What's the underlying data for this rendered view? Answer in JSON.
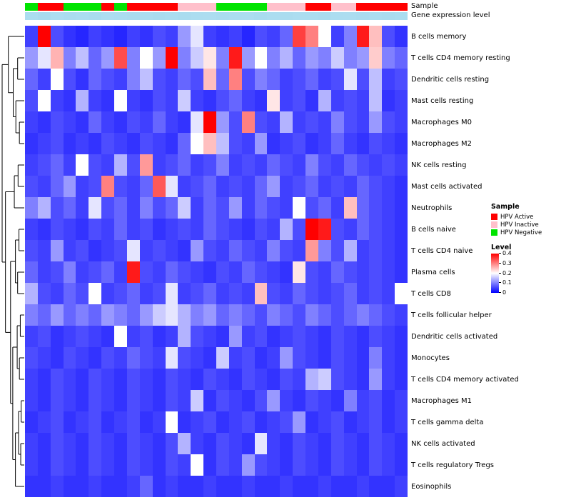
{
  "annotations": {
    "sample_label": "Sample",
    "expression_label": "Gene expression level"
  },
  "legend": {
    "sample_title": "Sample",
    "sample_items": [
      {
        "label": "HPV Active",
        "color": "#ff0000"
      },
      {
        "label": "HPV Inactive",
        "color": "#ffc0cb"
      },
      {
        "label": "HPV Negative",
        "color": "#00e400"
      }
    ],
    "level_title": "Level",
    "level_ticks": [
      "0.4",
      "0.3",
      "0.2",
      "0.1",
      "0"
    ]
  },
  "chart_data": {
    "type": "heatmap",
    "title": "",
    "rows": [
      "B cells memory",
      "T cells CD4 memory resting",
      "Dendritic cells resting",
      "Mast cells resting",
      "Macrophages M0",
      "Macrophages M2",
      "NK cells resting",
      "Mast cells activated",
      "Neutrophils",
      "B cells naive",
      "T cells CD4 naive",
      "Plasma cells",
      "T cells CD8",
      "T cells follicular helper",
      "Dendritic cells activated",
      "Monocytes",
      "T cells CD4 memory activated",
      "Macrophages M1",
      "T cells gamma delta",
      "NK cells activated",
      "T cells regulatory  Tregs",
      "Eosinophils"
    ],
    "n_columns": 30,
    "vmin": 0,
    "vmax": 0.4,
    "colormap": {
      "low": "#0000ff",
      "mid": "#ffffff",
      "high": "#ff0000"
    },
    "values": [
      [
        0.05,
        0.4,
        0.06,
        0.04,
        0.03,
        0.05,
        0.04,
        0.03,
        0.05,
        0.04,
        0.06,
        0.05,
        0.12,
        0.18,
        0.05,
        0.04,
        0.05,
        0.03,
        0.06,
        0.05,
        0.08,
        0.35,
        0.3,
        0.2,
        0.05,
        0.1,
        0.38,
        0.25,
        0.06,
        0.04
      ],
      [
        0.12,
        0.18,
        0.26,
        0.1,
        0.15,
        0.08,
        0.12,
        0.34,
        0.1,
        0.2,
        0.12,
        0.4,
        0.1,
        0.16,
        0.22,
        0.1,
        0.38,
        0.12,
        0.2,
        0.1,
        0.14,
        0.08,
        0.12,
        0.1,
        0.16,
        0.1,
        0.12,
        0.24,
        0.1,
        0.08
      ],
      [
        0.08,
        0.05,
        0.2,
        0.06,
        0.04,
        0.08,
        0.06,
        0.05,
        0.1,
        0.15,
        0.06,
        0.05,
        0.08,
        0.06,
        0.25,
        0.08,
        0.3,
        0.06,
        0.1,
        0.08,
        0.05,
        0.06,
        0.08,
        0.05,
        0.06,
        0.18,
        0.06,
        0.15,
        0.05,
        0.06
      ],
      [
        0.06,
        0.2,
        0.05,
        0.04,
        0.14,
        0.05,
        0.04,
        0.2,
        0.05,
        0.04,
        0.06,
        0.05,
        0.16,
        0.05,
        0.04,
        0.06,
        0.08,
        0.05,
        0.04,
        0.22,
        0.05,
        0.06,
        0.04,
        0.14,
        0.05,
        0.06,
        0.05,
        0.15,
        0.04,
        0.05
      ],
      [
        0.05,
        0.04,
        0.06,
        0.05,
        0.04,
        0.08,
        0.05,
        0.04,
        0.06,
        0.05,
        0.08,
        0.05,
        0.04,
        0.18,
        0.4,
        0.12,
        0.06,
        0.3,
        0.06,
        0.05,
        0.14,
        0.05,
        0.06,
        0.05,
        0.1,
        0.06,
        0.05,
        0.12,
        0.06,
        0.05
      ],
      [
        0.04,
        0.05,
        0.06,
        0.04,
        0.05,
        0.04,
        0.06,
        0.05,
        0.04,
        0.06,
        0.05,
        0.04,
        0.08,
        0.2,
        0.25,
        0.15,
        0.06,
        0.05,
        0.12,
        0.04,
        0.05,
        0.06,
        0.04,
        0.05,
        0.08,
        0.05,
        0.04,
        0.06,
        0.05,
        0.04
      ],
      [
        0.05,
        0.06,
        0.08,
        0.05,
        0.2,
        0.06,
        0.05,
        0.14,
        0.06,
        0.28,
        0.05,
        0.06,
        0.08,
        0.05,
        0.06,
        0.1,
        0.05,
        0.06,
        0.05,
        0.08,
        0.06,
        0.05,
        0.1,
        0.06,
        0.05,
        0.08,
        0.06,
        0.05,
        0.06,
        0.05
      ],
      [
        0.06,
        0.05,
        0.08,
        0.12,
        0.05,
        0.06,
        0.3,
        0.06,
        0.05,
        0.08,
        0.33,
        0.18,
        0.05,
        0.06,
        0.08,
        0.05,
        0.06,
        0.05,
        0.08,
        0.12,
        0.05,
        0.06,
        0.08,
        0.05,
        0.06,
        0.05,
        0.08,
        0.06,
        0.05,
        0.04
      ],
      [
        0.1,
        0.14,
        0.06,
        0.08,
        0.05,
        0.18,
        0.06,
        0.08,
        0.05,
        0.1,
        0.06,
        0.08,
        0.16,
        0.05,
        0.08,
        0.06,
        0.12,
        0.05,
        0.08,
        0.06,
        0.05,
        0.2,
        0.06,
        0.08,
        0.05,
        0.25,
        0.08,
        0.06,
        0.05,
        0.04
      ],
      [
        0.05,
        0.04,
        0.06,
        0.05,
        0.04,
        0.06,
        0.05,
        0.08,
        0.05,
        0.06,
        0.04,
        0.05,
        0.06,
        0.05,
        0.08,
        0.06,
        0.05,
        0.04,
        0.06,
        0.05,
        0.14,
        0.06,
        0.4,
        0.38,
        0.06,
        0.05,
        0.08,
        0.06,
        0.05,
        0.04
      ],
      [
        0.06,
        0.05,
        0.12,
        0.05,
        0.06,
        0.04,
        0.05,
        0.06,
        0.18,
        0.05,
        0.06,
        0.05,
        0.04,
        0.12,
        0.06,
        0.05,
        0.08,
        0.06,
        0.05,
        0.1,
        0.06,
        0.05,
        0.28,
        0.1,
        0.06,
        0.14,
        0.05,
        0.06,
        0.05,
        0.04
      ],
      [
        0.08,
        0.05,
        0.06,
        0.1,
        0.05,
        0.06,
        0.08,
        0.05,
        0.38,
        0.06,
        0.05,
        0.08,
        0.06,
        0.05,
        0.04,
        0.06,
        0.05,
        0.08,
        0.06,
        0.05,
        0.04,
        0.22,
        0.06,
        0.05,
        0.08,
        0.06,
        0.05,
        0.06,
        0.05,
        0.04
      ],
      [
        0.14,
        0.06,
        0.05,
        0.08,
        0.06,
        0.2,
        0.05,
        0.06,
        0.08,
        0.05,
        0.06,
        0.18,
        0.05,
        0.06,
        0.08,
        0.05,
        0.06,
        0.05,
        0.25,
        0.06,
        0.05,
        0.08,
        0.06,
        0.05,
        0.06,
        0.08,
        0.05,
        0.06,
        0.05,
        0.2
      ],
      [
        0.1,
        0.08,
        0.12,
        0.08,
        0.1,
        0.08,
        0.12,
        0.1,
        0.08,
        0.12,
        0.16,
        0.18,
        0.14,
        0.1,
        0.12,
        0.08,
        0.1,
        0.08,
        0.06,
        0.1,
        0.08,
        0.06,
        0.1,
        0.08,
        0.06,
        0.08,
        0.1,
        0.08,
        0.06,
        0.05
      ],
      [
        0.05,
        0.06,
        0.04,
        0.05,
        0.06,
        0.05,
        0.04,
        0.2,
        0.05,
        0.06,
        0.04,
        0.05,
        0.14,
        0.06,
        0.05,
        0.04,
        0.12,
        0.05,
        0.06,
        0.04,
        0.05,
        0.06,
        0.05,
        0.04,
        0.06,
        0.05,
        0.04,
        0.06,
        0.05,
        0.04
      ],
      [
        0.06,
        0.05,
        0.04,
        0.06,
        0.05,
        0.04,
        0.06,
        0.05,
        0.08,
        0.06,
        0.05,
        0.18,
        0.06,
        0.05,
        0.04,
        0.16,
        0.05,
        0.06,
        0.04,
        0.05,
        0.12,
        0.06,
        0.05,
        0.04,
        0.06,
        0.05,
        0.04,
        0.1,
        0.05,
        0.04
      ],
      [
        0.05,
        0.04,
        0.06,
        0.05,
        0.04,
        0.06,
        0.05,
        0.04,
        0.06,
        0.05,
        0.04,
        0.06,
        0.05,
        0.04,
        0.06,
        0.05,
        0.04,
        0.06,
        0.05,
        0.04,
        0.06,
        0.05,
        0.14,
        0.16,
        0.06,
        0.05,
        0.04,
        0.12,
        0.05,
        0.04
      ],
      [
        0.05,
        0.04,
        0.06,
        0.05,
        0.04,
        0.06,
        0.05,
        0.04,
        0.06,
        0.05,
        0.04,
        0.06,
        0.05,
        0.16,
        0.04,
        0.06,
        0.05,
        0.04,
        0.06,
        0.12,
        0.05,
        0.04,
        0.06,
        0.05,
        0.04,
        0.1,
        0.05,
        0.06,
        0.04,
        0.05
      ],
      [
        0.04,
        0.05,
        0.06,
        0.04,
        0.05,
        0.06,
        0.04,
        0.05,
        0.06,
        0.04,
        0.05,
        0.2,
        0.04,
        0.05,
        0.06,
        0.04,
        0.05,
        0.06,
        0.04,
        0.05,
        0.06,
        0.12,
        0.04,
        0.05,
        0.06,
        0.04,
        0.05,
        0.06,
        0.04,
        0.05
      ],
      [
        0.05,
        0.04,
        0.06,
        0.05,
        0.04,
        0.06,
        0.05,
        0.04,
        0.06,
        0.05,
        0.04,
        0.06,
        0.14,
        0.05,
        0.04,
        0.06,
        0.05,
        0.04,
        0.18,
        0.05,
        0.04,
        0.06,
        0.05,
        0.04,
        0.06,
        0.05,
        0.04,
        0.06,
        0.05,
        0.04
      ],
      [
        0.05,
        0.04,
        0.06,
        0.05,
        0.04,
        0.06,
        0.05,
        0.04,
        0.06,
        0.05,
        0.04,
        0.06,
        0.05,
        0.2,
        0.04,
        0.06,
        0.05,
        0.12,
        0.06,
        0.05,
        0.04,
        0.06,
        0.05,
        0.04,
        0.06,
        0.05,
        0.04,
        0.06,
        0.05,
        0.04
      ],
      [
        0.04,
        0.04,
        0.05,
        0.04,
        0.04,
        0.05,
        0.04,
        0.04,
        0.05,
        0.08,
        0.04,
        0.05,
        0.04,
        0.04,
        0.05,
        0.04,
        0.04,
        0.05,
        0.04,
        0.04,
        0.05,
        0.04,
        0.04,
        0.05,
        0.04,
        0.04,
        0.05,
        0.04,
        0.04,
        0.05
      ]
    ],
    "column_sample": [
      "HPV Negative",
      "HPV Active",
      "HPV Active",
      "HPV Negative",
      "HPV Negative",
      "HPV Negative",
      "HPV Active",
      "HPV Negative",
      "HPV Active",
      "HPV Active",
      "HPV Active",
      "HPV Active",
      "HPV Inactive",
      "HPV Inactive",
      "HPV Inactive",
      "HPV Negative",
      "HPV Negative",
      "HPV Negative",
      "HPV Negative",
      "HPV Inactive",
      "HPV Inactive",
      "HPV Inactive",
      "HPV Active",
      "HPV Active",
      "HPV Inactive",
      "HPV Inactive",
      "HPV Active",
      "HPV Active",
      "HPV Active",
      "HPV Active"
    ],
    "sample_colors": {
      "HPV Active": "#ff0000",
      "HPV Inactive": "#ffc0cb",
      "HPV Negative": "#00e400"
    },
    "column_expression": [
      0.5,
      0.55,
      0.48,
      0.52,
      0.5,
      0.53,
      0.47,
      0.5,
      0.52,
      0.49,
      0.51,
      0.5,
      0.54,
      0.5,
      0.48,
      0.52,
      0.5,
      0.49,
      0.53,
      0.5,
      0.51,
      0.48,
      0.5,
      0.52,
      0.5,
      0.49,
      0.51,
      0.5,
      0.52,
      0.5
    ],
    "expression_colors": {
      "low": "#c7e9f7",
      "high": "#8fd0e8"
    },
    "row_dendrogram": {
      "h": 1.0,
      "c": [
        {
          "h": 0.72,
          "c": [
            0,
            {
              "h": 0.5,
              "c": [
                {
                  "h": 0.3,
                  "c": [
                    1,
                    2
                  ]
                },
                {
                  "h": 0.38,
                  "c": [
                    3,
                    {
                      "h": 0.22,
                      "c": [
                        4,
                        5
                      ]
                    }
                  ]
                }
              ]
            }
          ]
        },
        {
          "h": 0.85,
          "c": [
            {
              "h": 0.45,
              "c": [
                {
                  "h": 0.28,
                  "c": [
                    6,
                    7
                  ]
                },
                8
              ]
            },
            {
              "h": 0.62,
              "c": [
                {
                  "h": 0.4,
                  "c": [
                    {
                      "h": 0.24,
                      "c": [
                        9,
                        10
                      ]
                    },
                    {
                      "h": 0.3,
                      "c": [
                        11,
                        12
                      ]
                    }
                  ]
                },
                {
                  "h": 0.52,
                  "c": [
                    {
                      "h": 0.32,
                      "c": [
                        {
                          "h": 0.18,
                          "c": [
                            13,
                            14
                          ]
                        },
                        {
                          "h": 0.22,
                          "c": [
                            15,
                            16
                          ]
                        }
                      ]
                    },
                    {
                      "h": 0.4,
                      "c": [
                        {
                          "h": 0.26,
                          "c": [
                            {
                              "h": 0.14,
                              "c": [
                                17,
                                18
                              ]
                            },
                            {
                              "h": 0.16,
                              "c": [
                                19,
                                20
                              ]
                            }
                          ]
                        },
                        21
                      ]
                    }
                  ]
                }
              ]
            }
          ]
        }
      ]
    }
  }
}
